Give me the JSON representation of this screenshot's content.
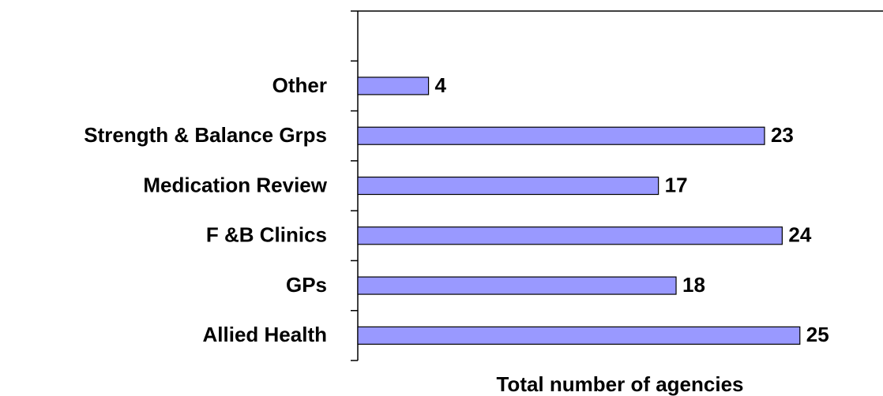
{
  "chart_data": {
    "type": "bar",
    "orientation": "horizontal",
    "categories": [
      "Allied Health",
      "GPs",
      "F &B Clinics",
      "Medication Review",
      "Strength & Balance Grps",
      "Other",
      null
    ],
    "values": [
      25,
      18,
      24,
      17,
      23,
      4,
      null
    ],
    "color": "#9999ff",
    "xlim": [
      0,
      29.7
    ],
    "xlabel": "Total number of agencies"
  }
}
